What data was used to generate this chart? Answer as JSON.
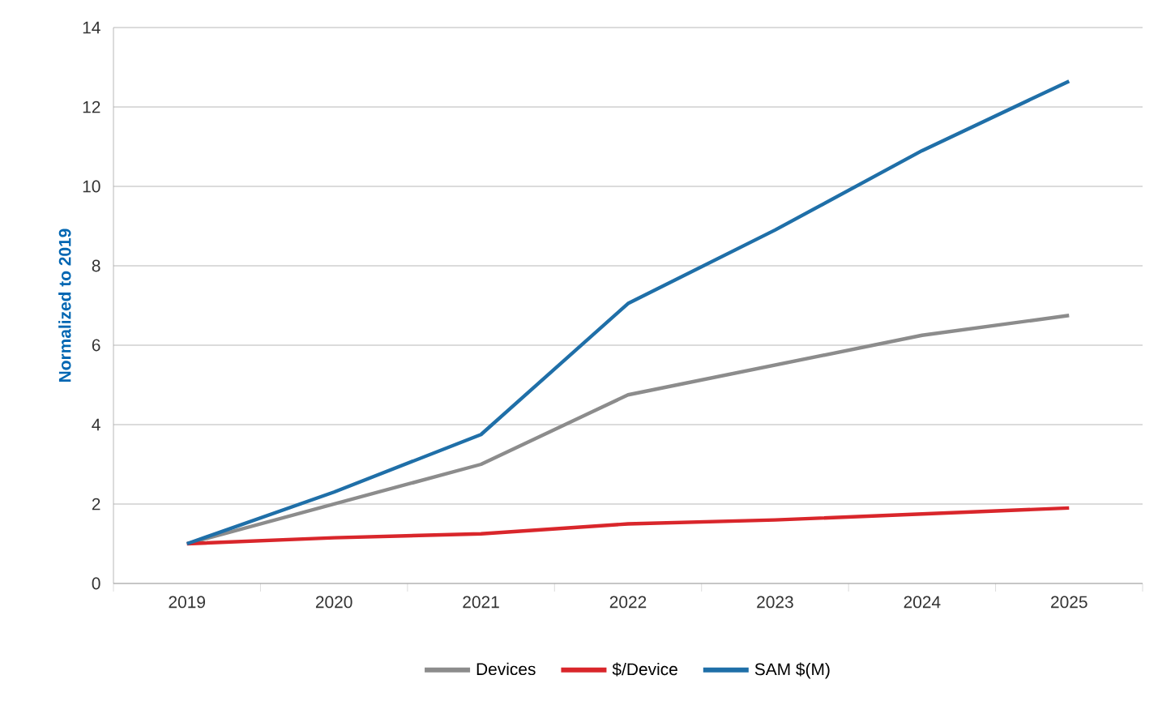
{
  "chart_data": {
    "type": "line",
    "ylabel": "Normalized to 2019",
    "categories": [
      "2019",
      "2020",
      "2021",
      "2022",
      "2023",
      "2024",
      "2025"
    ],
    "series": [
      {
        "name": "Devices",
        "color": "#8c8c8c",
        "values": [
          1,
          2.0,
          3.0,
          4.75,
          5.5,
          6.25,
          6.75
        ]
      },
      {
        "name": "$/Device",
        "color": "#d9262b",
        "values": [
          1,
          1.15,
          1.25,
          1.5,
          1.6,
          1.75,
          1.9
        ]
      },
      {
        "name": "SAM $(M)",
        "color": "#1f6fa8",
        "values": [
          1,
          2.3,
          3.75,
          7.05,
          8.9,
          10.9,
          12.65
        ]
      }
    ],
    "ylim": [
      0,
      14
    ],
    "yticks": [
      0,
      2,
      4,
      6,
      8,
      10,
      12,
      14
    ],
    "grid": "y",
    "legend": "bottom",
    "marker": "none",
    "line_style": "solid"
  }
}
